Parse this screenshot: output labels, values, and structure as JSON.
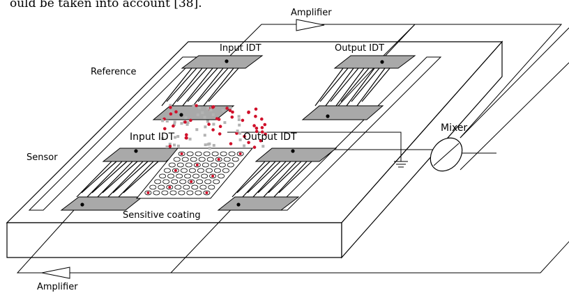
{
  "header_fragment": "ould be taken into account [38].",
  "labels": {
    "amplifier_top": "Amplifier",
    "amplifier_bottom": "Amplifier",
    "mixer": "Mixer",
    "reference": "Reference",
    "sensor": "Sensor",
    "sensitive_coating": "Sensitive coating",
    "ref_input_idt": "Input IDT",
    "ref_output_idt": "Output IDT",
    "sen_input_idt": "Input IDT",
    "sen_output_idt": "Output IDT"
  },
  "colors": {
    "line": "#000000",
    "idt_pad": "#a9a9a9",
    "particle_red": "#d0102a",
    "particle_gray": "#b3b3b3"
  }
}
